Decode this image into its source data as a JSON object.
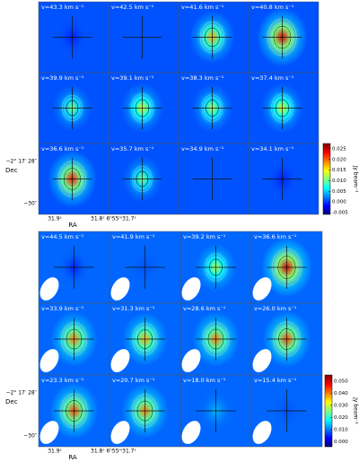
{
  "figures": [
    {
      "panels": [
        "v=43.3 km s⁻¹",
        "v=42.5 km s⁻¹",
        "v=41.6 km s⁻¹",
        "v=40.8 km s⁻¹",
        "v=39.9 km s⁻¹",
        "v=39.1 km s⁻¹",
        "v=38.3 km s⁻¹",
        "v=37.4 km s⁻¹",
        "v=36.6 km s⁻¹",
        "v=35.7 km s⁻¹",
        "v=34.9 km s⁻¹",
        "v=34.1 km s⁻¹"
      ],
      "colorbar_label": "Jy beam⁻¹",
      "clim": [
        -0.0058,
        0.0275
      ],
      "cticks": [
        {
          "value": -0.005,
          "label": "-0.005"
        },
        {
          "value": 0,
          "label": "0.000"
        },
        {
          "value": 0.005,
          "label": "0.005"
        },
        {
          "value": 0.01,
          "label": "0.010"
        },
        {
          "value": 0.015,
          "label": "0.015"
        },
        {
          "value": 0.02,
          "label": "0.020"
        },
        {
          "value": 0.025,
          "label": "0.025"
        }
      ],
      "ylabel": "Dec",
      "xlabel": "RA",
      "dec_ticks": [
        "−2° 17′ 28″",
        "−30″"
      ],
      "ra_ticks": [
        "31.9ˢ",
        "31.8ˢ 6ʰ55ᵐ31.7ˢ"
      ]
    },
    {
      "panels": [
        "v=44.5 km s⁻¹",
        "v=41.9 km s⁻¹",
        "v=39.2 km s⁻¹",
        "v=36.6 km s⁻¹",
        "v=33.9 km s⁻¹",
        "v=31.3 km s⁻¹",
        "v=28.6 km s⁻¹",
        "v=26.0 km s⁻¹",
        "v=23.3 km s⁻¹",
        "v=20.7 km s⁻¹",
        "v=18.0 km s⁻¹",
        "v=15.4 km s⁻¹"
      ],
      "colorbar_label": "Jy beam⁻¹",
      "clim": [
        -0.004,
        0.055
      ],
      "cticks": [
        {
          "value": 0,
          "label": "0.000"
        },
        {
          "value": 0.01,
          "label": "0.010"
        },
        {
          "value": 0.02,
          "label": "0.020"
        },
        {
          "value": 0.03,
          "label": "0.030"
        },
        {
          "value": 0.04,
          "label": "0.040"
        },
        {
          "value": 0.05,
          "label": "0.050"
        }
      ],
      "ylabel": "Dec",
      "xlabel": "RA",
      "dec_ticks": [
        "−2° 17′ 28″",
        "−30″"
      ],
      "ra_ticks": [
        "31.9ˢ",
        "31.8ˢ 6ʰ55ᵐ31.7ˢ"
      ]
    }
  ]
}
